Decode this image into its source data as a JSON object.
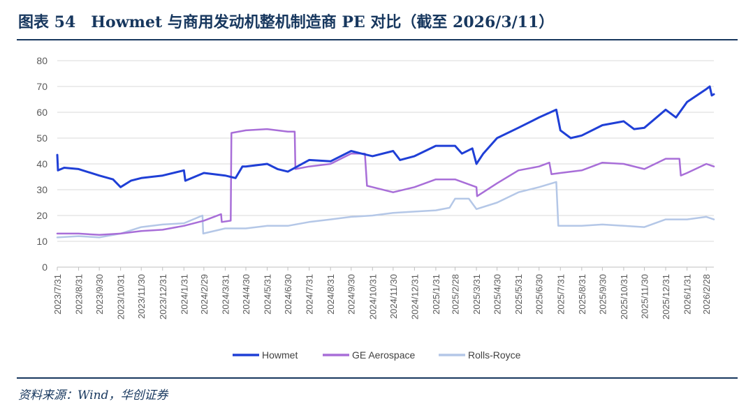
{
  "header": {
    "title": "图表 54　Howmet 与商用发动机整机制造商 PE 对比（截至 2026/3/11）"
  },
  "footer": {
    "source": "资料来源：Wind，华创证券"
  },
  "chart_data": {
    "type": "line",
    "title": "",
    "xlabel": "",
    "ylabel": "",
    "ylim": [
      0,
      80
    ],
    "yticks": [
      0,
      10,
      20,
      30,
      40,
      50,
      60,
      70,
      80
    ],
    "grid": "horizontal",
    "legend": "bottom",
    "x_ticks": [
      "2023/7/31",
      "2023/8/31",
      "2023/9/30",
      "2023/10/31",
      "2023/11/30",
      "2023/12/31",
      "2024/1/31",
      "2024/2/29",
      "2024/3/31",
      "2024/4/30",
      "2024/5/31",
      "2024/6/30",
      "2024/7/31",
      "2024/8/31",
      "2024/9/30",
      "2024/10/31",
      "2024/11/30",
      "2024/12/31",
      "2025/1/31",
      "2025/2/28",
      "2025/3/31",
      "2025/4/30",
      "2025/5/31",
      "2025/6/30",
      "2025/7/31",
      "2025/8/31",
      "2025/9/30",
      "2025/10/31",
      "2025/11/30",
      "2025/12/31",
      "2026/1/31",
      "2026/2/28"
    ],
    "x_end": "2026/3/11",
    "series": [
      {
        "name": "Howmet",
        "color": "#1f3fd6",
        "points": [
          [
            "2023/7/31",
            43.5
          ],
          [
            "2023/8/1",
            37.5
          ],
          [
            "2023/8/10",
            38.5
          ],
          [
            "2023/8/31",
            38
          ],
          [
            "2023/9/30",
            35.5
          ],
          [
            "2023/10/20",
            34
          ],
          [
            "2023/10/31",
            31
          ],
          [
            "2023/11/15",
            33.5
          ],
          [
            "2023/11/30",
            34.5
          ],
          [
            "2023/12/31",
            35.5
          ],
          [
            "2024/1/31",
            37.5
          ],
          [
            "2024/2/2",
            33.5
          ],
          [
            "2024/2/29",
            36.5
          ],
          [
            "2024/3/31",
            35.5
          ],
          [
            "2024/4/15",
            34.5
          ],
          [
            "2024/4/25",
            39
          ],
          [
            "2024/4/30",
            39
          ],
          [
            "2024/5/31",
            40
          ],
          [
            "2024/6/15",
            38
          ],
          [
            "2024/6/30",
            37
          ],
          [
            "2024/7/31",
            41.5
          ],
          [
            "2024/8/31",
            41
          ],
          [
            "2024/9/30",
            45
          ],
          [
            "2024/10/15",
            44
          ],
          [
            "2024/10/31",
            43
          ],
          [
            "2024/11/30",
            45
          ],
          [
            "2024/12/10",
            41.5
          ],
          [
            "2024/12/31",
            43
          ],
          [
            "2025/1/31",
            47
          ],
          [
            "2025/2/28",
            47
          ],
          [
            "2025/3/10",
            44
          ],
          [
            "2025/3/25",
            46
          ],
          [
            "2025/3/31",
            40
          ],
          [
            "2025/4/10",
            44
          ],
          [
            "2025/4/30",
            50
          ],
          [
            "2025/5/31",
            54
          ],
          [
            "2025/6/30",
            58
          ],
          [
            "2025/7/25",
            61
          ],
          [
            "2025/7/31",
            53
          ],
          [
            "2025/8/15",
            50
          ],
          [
            "2025/8/31",
            51
          ],
          [
            "2025/9/30",
            55
          ],
          [
            "2025/10/31",
            56.5
          ],
          [
            "2025/11/15",
            53.5
          ],
          [
            "2025/11/30",
            54
          ],
          [
            "2025/12/31",
            61
          ],
          [
            "2026/1/15",
            58
          ],
          [
            "2026/1/31",
            64
          ],
          [
            "2026/2/28",
            69
          ],
          [
            "2026/3/5",
            70
          ],
          [
            "2026/3/8",
            66.5
          ],
          [
            "2026/3/11",
            67
          ]
        ]
      },
      {
        "name": "GE Aerospace",
        "color": "#a86ed8",
        "points": [
          [
            "2023/7/31",
            13
          ],
          [
            "2023/8/31",
            13
          ],
          [
            "2023/9/30",
            12.5
          ],
          [
            "2023/10/31",
            13
          ],
          [
            "2023/11/30",
            14
          ],
          [
            "2023/12/31",
            14.5
          ],
          [
            "2024/1/31",
            16
          ],
          [
            "2024/2/29",
            18
          ],
          [
            "2024/3/25",
            20.5
          ],
          [
            "2024/3/26",
            17.5
          ],
          [
            "2024/4/8",
            18
          ],
          [
            "2024/4/9",
            52
          ],
          [
            "2024/4/30",
            53
          ],
          [
            "2024/5/31",
            53.5
          ],
          [
            "2024/6/30",
            52.5
          ],
          [
            "2024/7/10",
            52.5
          ],
          [
            "2024/7/11",
            38
          ],
          [
            "2024/7/31",
            39
          ],
          [
            "2024/8/31",
            40
          ],
          [
            "2024/9/30",
            44
          ],
          [
            "2024/10/20",
            44
          ],
          [
            "2024/10/23",
            31.5
          ],
          [
            "2024/10/31",
            31
          ],
          [
            "2024/11/30",
            29
          ],
          [
            "2024/12/31",
            31
          ],
          [
            "2025/1/31",
            34
          ],
          [
            "2025/2/28",
            34
          ],
          [
            "2025/3/31",
            31
          ],
          [
            "2025/4/1",
            27.5
          ],
          [
            "2025/4/30",
            32.5
          ],
          [
            "2025/5/31",
            37.5
          ],
          [
            "2025/6/30",
            39
          ],
          [
            "2025/7/15",
            40.5
          ],
          [
            "2025/7/18",
            36
          ],
          [
            "2025/7/31",
            36.5
          ],
          [
            "2025/8/31",
            37.5
          ],
          [
            "2025/9/30",
            40.5
          ],
          [
            "2025/10/31",
            40
          ],
          [
            "2025/11/30",
            38
          ],
          [
            "2025/12/31",
            42
          ],
          [
            "2026/1/20",
            42
          ],
          [
            "2026/1/22",
            35.5
          ],
          [
            "2026/1/31",
            36.5
          ],
          [
            "2026/2/28",
            40
          ],
          [
            "2026/3/11",
            39
          ]
        ]
      },
      {
        "name": "Rolls-Royce",
        "color": "#b4c7e7",
        "points": [
          [
            "2023/7/31",
            11.5
          ],
          [
            "2023/8/31",
            12
          ],
          [
            "2023/9/30",
            11.5
          ],
          [
            "2023/10/31",
            13
          ],
          [
            "2023/11/30",
            15.5
          ],
          [
            "2023/12/31",
            16.5
          ],
          [
            "2024/1/31",
            17
          ],
          [
            "2024/2/27",
            20
          ],
          [
            "2024/2/28",
            13
          ],
          [
            "2024/3/31",
            15
          ],
          [
            "2024/4/30",
            15
          ],
          [
            "2024/5/31",
            16
          ],
          [
            "2024/6/30",
            16
          ],
          [
            "2024/7/31",
            17.5
          ],
          [
            "2024/8/31",
            18.5
          ],
          [
            "2024/9/30",
            19.5
          ],
          [
            "2024/10/31",
            20
          ],
          [
            "2024/11/30",
            21
          ],
          [
            "2024/12/31",
            21.5
          ],
          [
            "2025/1/31",
            22
          ],
          [
            "2025/2/20",
            23
          ],
          [
            "2025/2/28",
            26.5
          ],
          [
            "2025/3/20",
            26.5
          ],
          [
            "2025/3/31",
            22.5
          ],
          [
            "2025/4/30",
            25
          ],
          [
            "2025/5/31",
            29
          ],
          [
            "2025/6/30",
            31
          ],
          [
            "2025/7/25",
            33
          ],
          [
            "2025/7/28",
            16
          ],
          [
            "2025/8/31",
            16
          ],
          [
            "2025/9/30",
            16.5
          ],
          [
            "2025/10/31",
            16
          ],
          [
            "2025/11/30",
            15.5
          ],
          [
            "2025/12/31",
            18.5
          ],
          [
            "2026/1/31",
            18.5
          ],
          [
            "2026/2/28",
            19.5
          ],
          [
            "2026/3/11",
            18.5
          ]
        ]
      }
    ]
  }
}
